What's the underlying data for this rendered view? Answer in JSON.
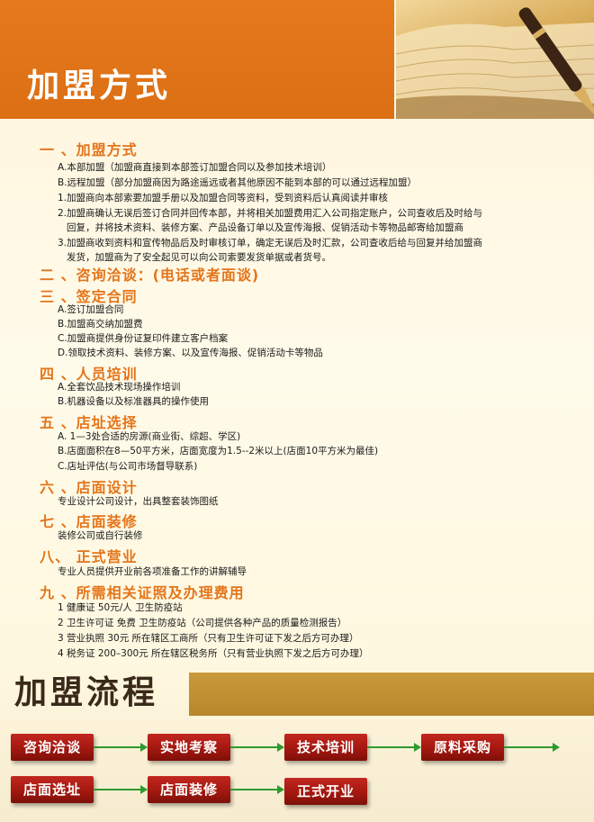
{
  "header": {
    "title": "加盟方式"
  },
  "sections": [
    {
      "title": "一 、加盟方式",
      "lines": [
        "A.本部加盟（加盟商直接到本部签订加盟合同以及参加技术培训）",
        "B.远程加盟（部分加盟商因为路途遥远或者其他原因不能到本部的可以通过远程加盟）",
        "1.加盟商向本部索要加盟手册以及加盟合同等资料，受到资料后认真阅读并审核",
        "2.加盟商确认无误后签订合同并回传本部，并将相关加盟费用汇入公司指定账户，公司查收后及时给与",
        "回复，并将技术资料、装修方案、产品设备订单以及宣传海报、促销活动卡等物品邮寄给加盟商",
        "3.加盟商收到资料和宣传物品后及时审核订单，确定无误后及时汇款，公司查收后给与回复并给加盟商",
        "发货，加盟商为了安全起见可以向公司索要发货单据或者货号。"
      ]
    },
    {
      "title": "二 、咨询洽谈：(电话或者面谈)",
      "lines": []
    },
    {
      "title": "三 、签定合同",
      "lines": [
        "A.签订加盟合同",
        "B.加盟商交纳加盟费",
        "C.加盟商提供身份证复印件建立客户档案",
        "D.领取技术资料、装修方案、以及宣传海报、促销活动卡等物品"
      ]
    },
    {
      "title": "四 、人员培训",
      "lines": [
        "A.全套饮品技术现场操作培训",
        "B.机器设备以及标准器具的操作使用"
      ]
    },
    {
      "title": "五 、店址选择",
      "lines": [
        "A. 1—3处合适的房源(商业街、综超、学区)",
        "B.店面面积在8—50平方米，店面宽度为1.5--2米以上(店面10平方米为最佳)",
        "C.店址评估(与公司市场督导联系)"
      ]
    },
    {
      "title": "六 、店面设计",
      "lines": [
        "专业设计公司设计，出具整套装饰图纸"
      ]
    },
    {
      "title": "七 、店面装修",
      "lines": [
        "装修公司或自行装修"
      ]
    },
    {
      "title": "八、  正式营业",
      "lines": [
        "专业人员提供开业前各项准备工作的讲解辅导"
      ]
    },
    {
      "title": "九 、所需相关证照及办理费用",
      "lines": [
        "1 健康证 50元/人 卫生防疫站",
        "2 卫生许可证 免费 卫生防疫站（公司提供各种产品的质量检测报告）",
        "3 营业执照 30元 所在辖区工商所（只有卫生许可证下发之后方可办理）",
        "4 税务证 200–300元 所在辖区税务所（只有营业执照下发之后方可办理）"
      ]
    }
  ],
  "flow": {
    "title": "加盟流程",
    "steps": [
      "咨询洽谈",
      "实地考察",
      "技术培训",
      "原料采购",
      "店面选址",
      "店面装修",
      "正式开业"
    ]
  },
  "colors": {
    "accent_orange": "#e4751b",
    "step_red": "#a3180f",
    "arrow_green": "#2f9a2f",
    "band_gold": "#b8862b"
  }
}
